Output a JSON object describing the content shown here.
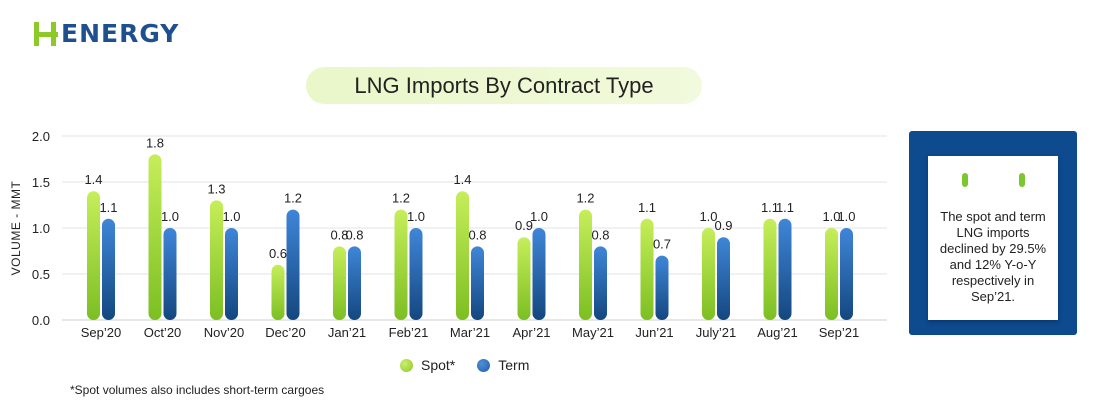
{
  "brand": {
    "name": "ENERGY"
  },
  "chart_data": {
    "type": "bar",
    "title": "LNG Imports By Contract Type",
    "ylabel": "VOLUME - MMT",
    "ylim": [
      0,
      2
    ],
    "yticks": [
      "0.0",
      "0.5",
      "1.0",
      "1.5",
      "2.0"
    ],
    "grid": true,
    "legend_position": "bottom",
    "categories": [
      "Sep’20",
      "Oct’20",
      "Nov’20",
      "Dec’20",
      "Jan’21",
      "Feb’21",
      "Mar’21",
      "Apr’21",
      "May’21",
      "Jun’21",
      "July’21",
      "Aug’21",
      "Sep’21"
    ],
    "series": [
      {
        "name": "Spot*",
        "values": [
          1.4,
          1.8,
          1.3,
          0.6,
          0.8,
          1.2,
          1.4,
          0.9,
          1.2,
          1.1,
          1.0,
          1.1,
          1.0
        ],
        "labels": [
          "1.4",
          "1.8",
          "1.3",
          "0.6",
          "0.8",
          "1.2",
          "1.4",
          "0.9",
          "1.2",
          "1.1",
          "1.0",
          "1.1",
          "1.0"
        ],
        "color": "#8dc928"
      },
      {
        "name": "Term",
        "values": [
          1.1,
          1.0,
          1.0,
          1.2,
          0.8,
          1.0,
          0.8,
          1.0,
          0.8,
          0.7,
          0.9,
          1.1,
          1.0
        ],
        "labels": [
          "1.1",
          "1.0",
          "1.0",
          "1.2",
          "0.8",
          "1.0",
          "0.8",
          "1.0",
          "0.8",
          "0.7",
          "0.9",
          "1.1",
          "1.0"
        ],
        "color": "#1f5fa8"
      }
    ]
  },
  "note": {
    "text": "The spot and term LNG imports declined by 29.5% and 12% Y-o-Y respectively in Sep’21."
  },
  "footnote": "*Spot volumes also includes short-term cargoes",
  "colors": {
    "spot": "#8dc928",
    "term": "#1f5fa8",
    "accent": "#0d4a8e"
  }
}
